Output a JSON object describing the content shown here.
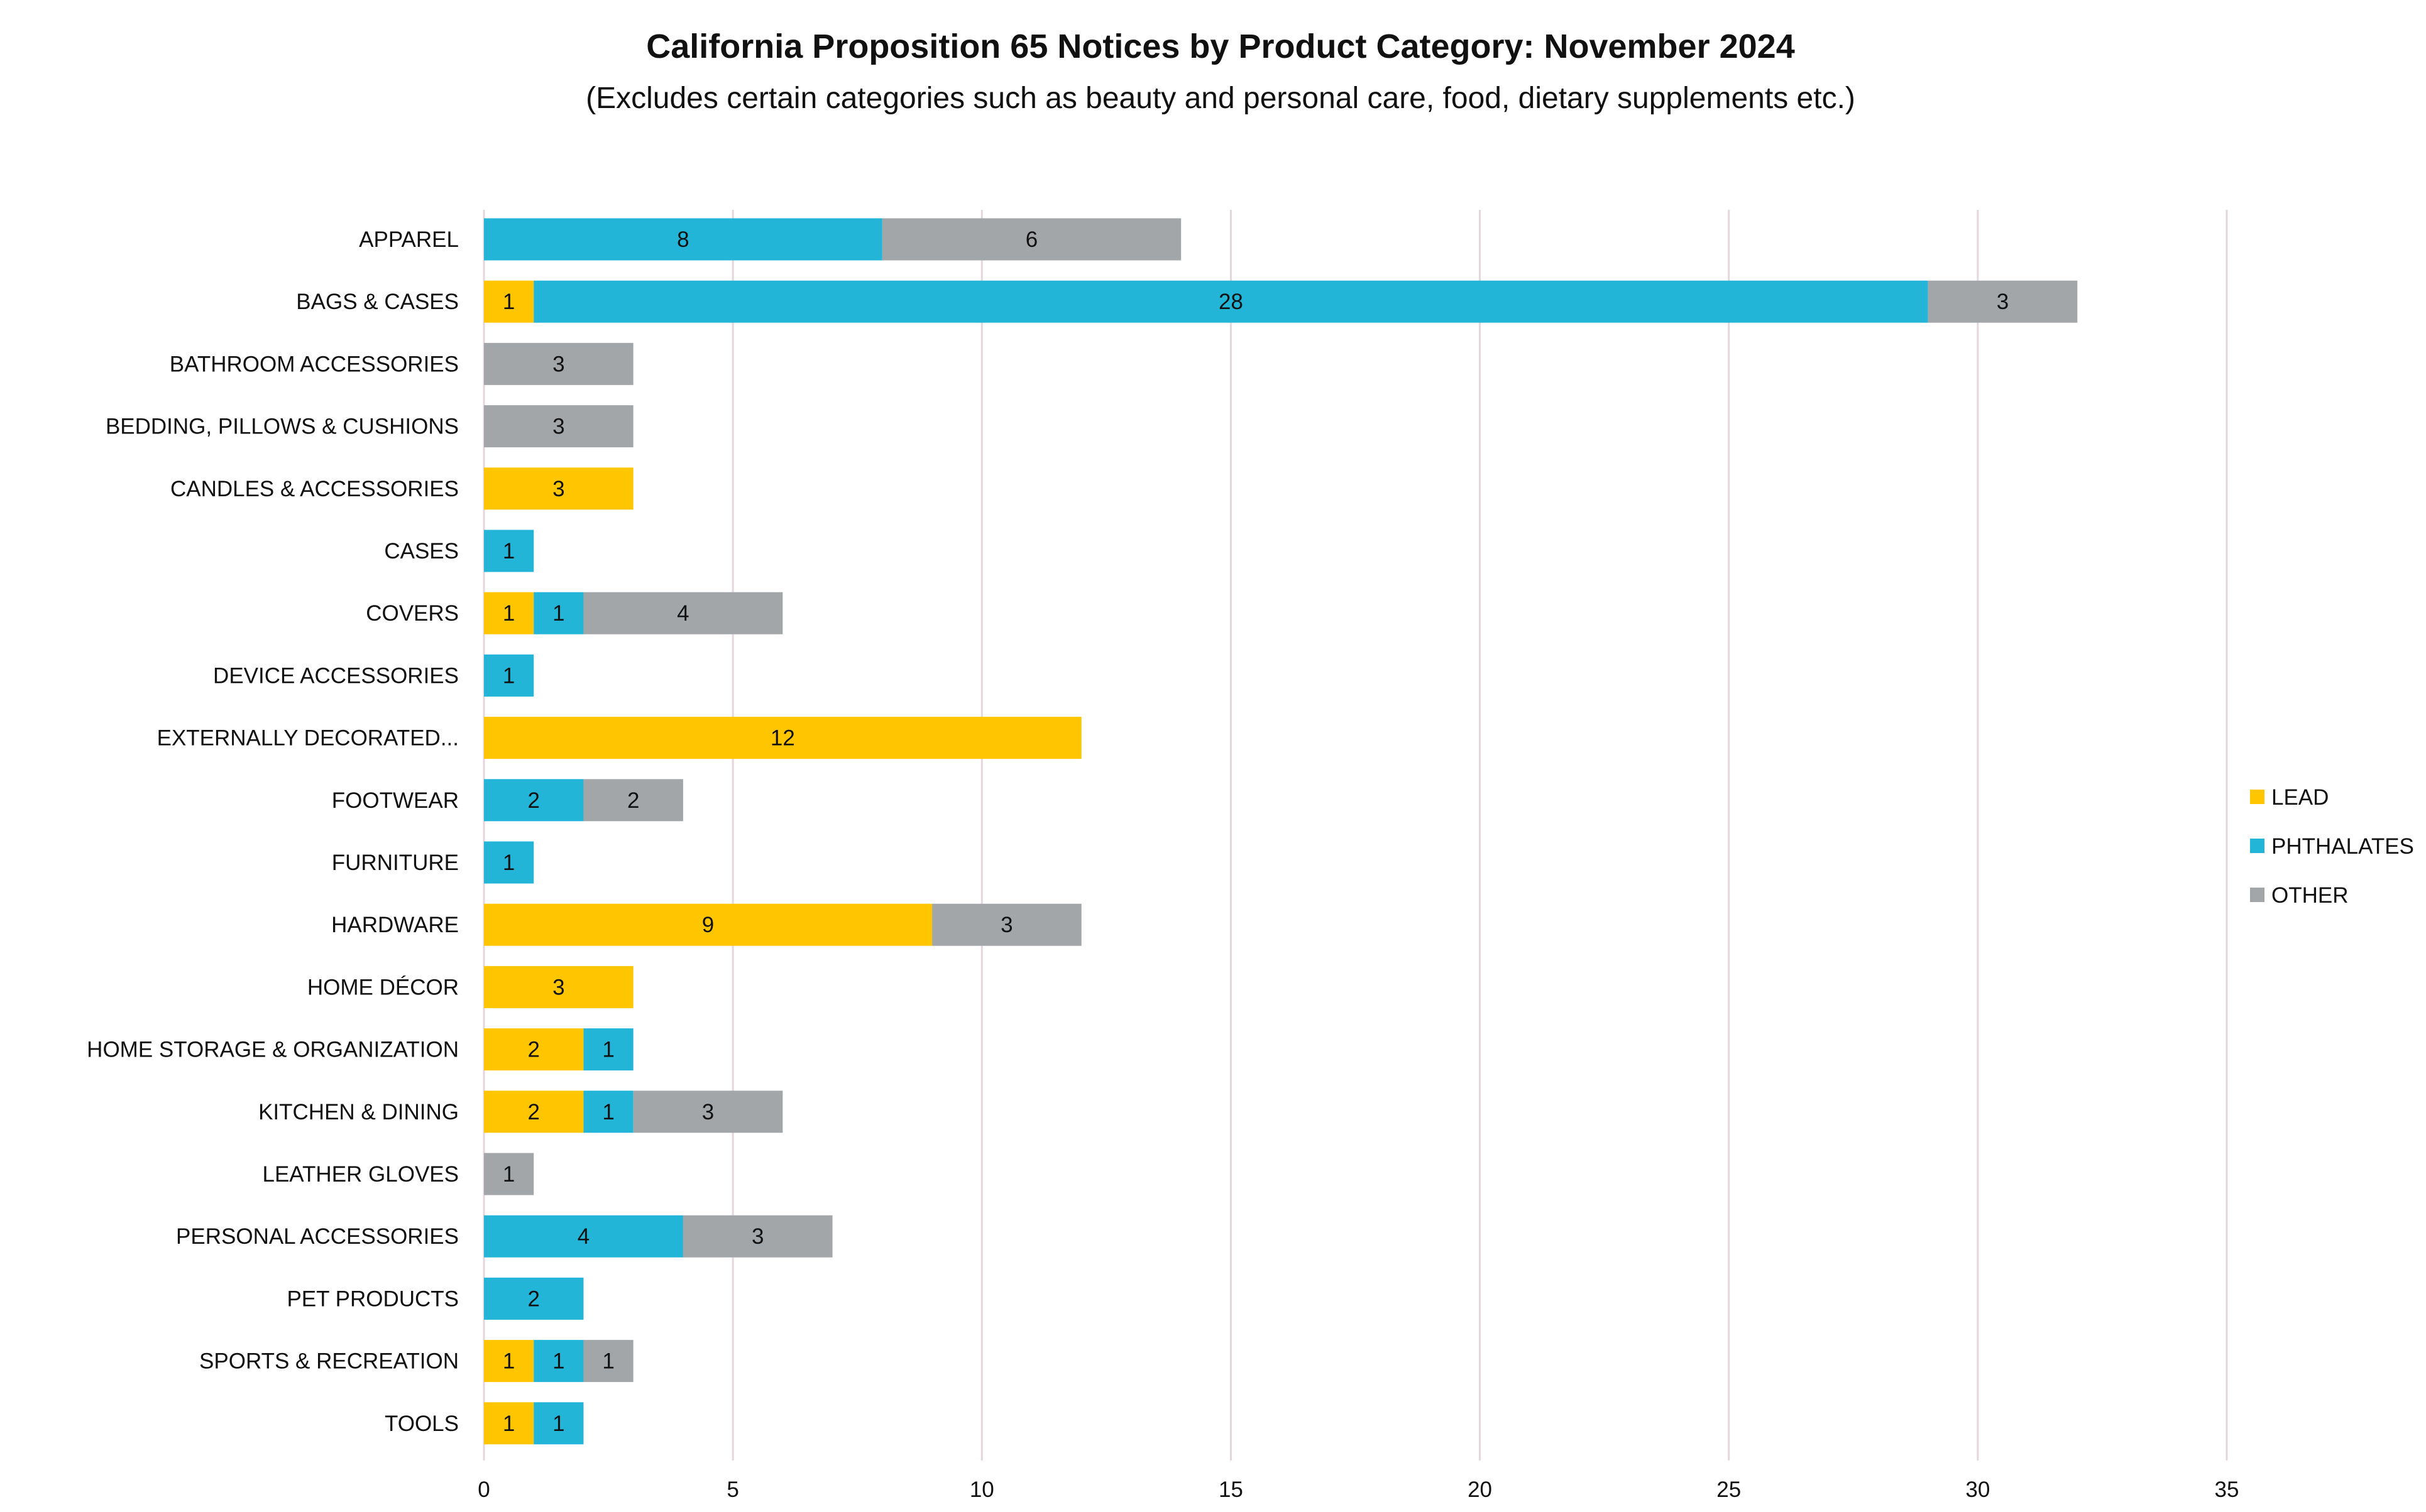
{
  "chart_data": {
    "type": "bar",
    "orientation": "horizontal",
    "stacked": true,
    "title": "California Proposition 65 Notices by Product Category: November 2024",
    "subtitle": "(Excludes certain categories such as beauty and personal care, food, dietary supplements etc.)",
    "xlabel": "",
    "ylabel": "",
    "xlim": [
      0,
      35
    ],
    "xticks": [
      0,
      5,
      10,
      15,
      20,
      25,
      30,
      35
    ],
    "grid": "vertical",
    "legend_position": "right",
    "categories": [
      "APPAREL",
      "BAGS & CASES",
      "BATHROOM ACCESSORIES",
      "BEDDING, PILLOWS & CUSHIONS",
      "CANDLES & ACCESSORIES",
      "CASES",
      "COVERS",
      "DEVICE ACCESSORIES",
      "EXTERNALLY DECORATED...",
      "FOOTWEAR",
      "FURNITURE",
      "HARDWARE",
      "HOME DÉCOR",
      "HOME STORAGE & ORGANIZATION",
      "KITCHEN & DINING",
      "LEATHER GLOVES",
      "PERSONAL ACCESSORIES",
      "PET PRODUCTS",
      "SPORTS & RECREATION",
      "TOOLS"
    ],
    "series": [
      {
        "name": "LEAD",
        "color": "#FFC600",
        "values": [
          0,
          1,
          0,
          0,
          3,
          0,
          1,
          0,
          12,
          0,
          0,
          9,
          3,
          2,
          2,
          0,
          0,
          0,
          1,
          1
        ]
      },
      {
        "name": "PHTHALATES",
        "color": "#22B5D8",
        "values": [
          8,
          28,
          0,
          0,
          0,
          1,
          1,
          1,
          0,
          2,
          1,
          0,
          0,
          1,
          1,
          0,
          4,
          2,
          1,
          1
        ]
      },
      {
        "name": "OTHER",
        "color": "#A3A6A9",
        "values": [
          6,
          3,
          3,
          3,
          0,
          0,
          4,
          0,
          0,
          2,
          0,
          3,
          0,
          0,
          3,
          1,
          3,
          0,
          1,
          0
        ]
      }
    ],
    "data_labels": true,
    "gridline_color": "#E3D6DC"
  }
}
